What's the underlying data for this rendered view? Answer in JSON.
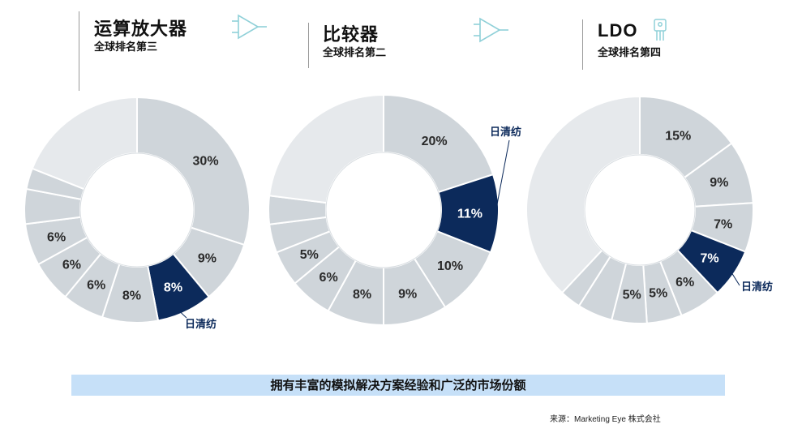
{
  "headers": [
    {
      "title": "运算放大器",
      "subtitle": "全球排名第三",
      "icon": "op-amp-icon"
    },
    {
      "title": "比较器",
      "subtitle": "全球排名第二",
      "icon": "comparator-icon"
    },
    {
      "title": "LDO",
      "subtitle": "全球排名第四",
      "icon": "regulator-icon"
    }
  ],
  "colors": {
    "highlight": "#0c2a5b",
    "segment": "#cfd5da",
    "others": "#e6e9ec",
    "stroke": "#ffffff",
    "icon": "#8fd0d8"
  },
  "chart_data": [
    {
      "type": "pie",
      "title": "运算放大器",
      "slices": [
        {
          "label": "30%",
          "value": 30,
          "highlight": false
        },
        {
          "label": "9%",
          "value": 9,
          "highlight": false
        },
        {
          "label": "8%",
          "value": 8,
          "highlight": true
        },
        {
          "label": "8%",
          "value": 8,
          "highlight": false
        },
        {
          "label": "6%",
          "value": 6,
          "highlight": false
        },
        {
          "label": "6%",
          "value": 6,
          "highlight": false
        },
        {
          "label": "6%",
          "value": 6,
          "highlight": false
        },
        {
          "label": "",
          "value": 5,
          "highlight": false
        },
        {
          "label": "",
          "value": 3,
          "highlight": false
        },
        {
          "label": "",
          "value": 19,
          "highlight": false,
          "others": true
        }
      ],
      "annotation": "日清纺"
    },
    {
      "type": "pie",
      "title": "比较器",
      "slices": [
        {
          "label": "20%",
          "value": 20,
          "highlight": false
        },
        {
          "label": "11%",
          "value": 11,
          "highlight": true
        },
        {
          "label": "10%",
          "value": 10,
          "highlight": false
        },
        {
          "label": "9%",
          "value": 9,
          "highlight": false
        },
        {
          "label": "8%",
          "value": 8,
          "highlight": false
        },
        {
          "label": "6%",
          "value": 6,
          "highlight": false
        },
        {
          "label": "5%",
          "value": 5,
          "highlight": false
        },
        {
          "label": "",
          "value": 4,
          "highlight": false
        },
        {
          "label": "",
          "value": 4,
          "highlight": false
        },
        {
          "label": "",
          "value": 23,
          "highlight": false,
          "others": true
        }
      ],
      "annotation": "日清纺"
    },
    {
      "type": "pie",
      "title": "LDO",
      "slices": [
        {
          "label": "15%",
          "value": 15,
          "highlight": false
        },
        {
          "label": "9%",
          "value": 9,
          "highlight": false
        },
        {
          "label": "7%",
          "value": 7,
          "highlight": false
        },
        {
          "label": "7%",
          "value": 7,
          "highlight": true
        },
        {
          "label": "6%",
          "value": 6,
          "highlight": false
        },
        {
          "label": "5%",
          "value": 5,
          "highlight": false
        },
        {
          "label": "5%",
          "value": 5,
          "highlight": false
        },
        {
          "label": "",
          "value": 5,
          "highlight": false
        },
        {
          "label": "",
          "value": 3,
          "highlight": false
        },
        {
          "label": "",
          "value": 38,
          "highlight": false,
          "others": true
        }
      ],
      "annotation": "日清纺"
    }
  ],
  "banner": "拥有丰富的模拟解决方案经验和广泛的市场份额",
  "source": "来源：Marketing Eye 株式会社"
}
